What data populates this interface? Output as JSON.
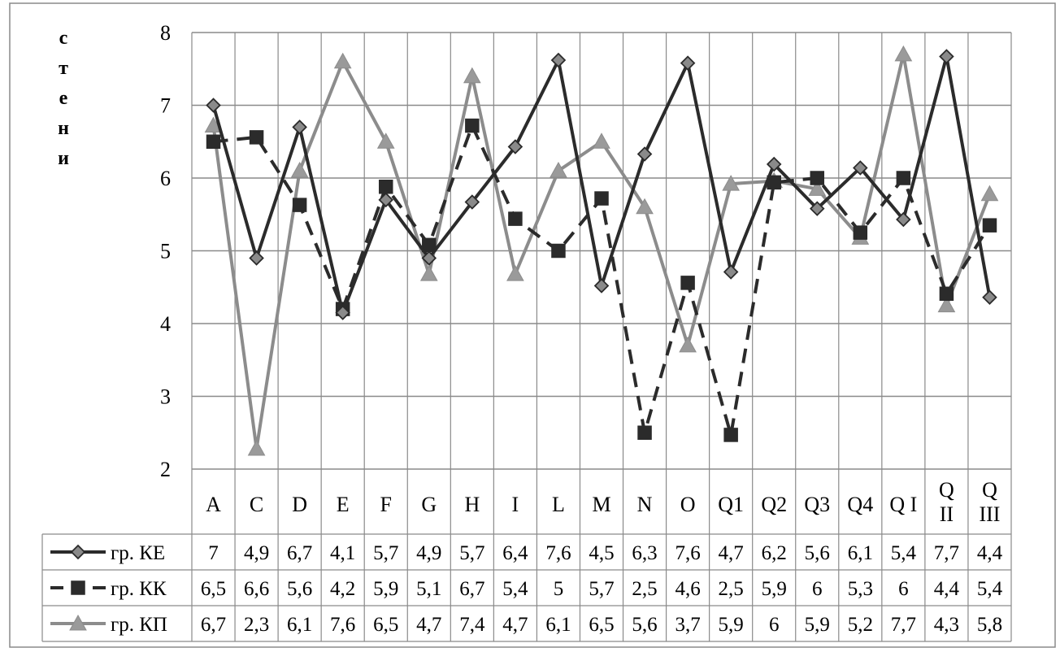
{
  "chart_data": {
    "type": "line",
    "ylabel": "стени",
    "ylim": [
      2,
      8
    ],
    "yticks": [
      "2",
      "3",
      "4",
      "5",
      "6",
      "7",
      "8"
    ],
    "grid": true,
    "legend": "data-table-left",
    "categories": [
      "A",
      "C",
      "D",
      "E",
      "F",
      "G",
      "H",
      "I",
      "L",
      "M",
      "N",
      "O",
      "Q1",
      "Q2",
      "Q3",
      "Q4",
      "Q I",
      "Q II",
      "Q III"
    ],
    "series": [
      {
        "name": "гр. КЕ",
        "color": "#2b2b2b",
        "line": "solid",
        "marker": "diamond",
        "values": [
          7.0,
          4.9,
          6.7,
          4.15,
          5.7,
          4.9,
          5.67,
          6.43,
          7.62,
          4.52,
          6.33,
          7.58,
          4.71,
          6.19,
          5.58,
          6.14,
          5.43,
          7.67,
          4.36
        ],
        "labels": [
          "7",
          "4,9",
          "6,7",
          "4,1",
          "5,7",
          "4,9",
          "5,7",
          "6,4",
          "7,6",
          "4,5",
          "6,3",
          "7,6",
          "4,7",
          "6,2",
          "5,6",
          "6,1",
          "5,4",
          "7,7",
          "4,4"
        ]
      },
      {
        "name": "гр. КК",
        "color": "#2b2b2b",
        "line": "dashed",
        "marker": "square",
        "values": [
          6.5,
          6.56,
          5.63,
          4.2,
          5.88,
          5.08,
          6.72,
          5.44,
          5.0,
          5.72,
          2.5,
          4.56,
          2.47,
          5.94,
          6.0,
          5.25,
          6.0,
          4.41,
          5.35
        ],
        "labels": [
          "6,5",
          "6,6",
          "5,6",
          "4,2",
          "5,9",
          "5,1",
          "6,7",
          "5,4",
          "5",
          "5,7",
          "2,5",
          "4,6",
          "2,5",
          "5,9",
          "6",
          "5,3",
          "6",
          "4,4",
          "5,4"
        ]
      },
      {
        "name": "гр. КП",
        "color": "#8c8c8c",
        "line": "solid",
        "marker": "triangle",
        "values": [
          6.72,
          2.28,
          6.1,
          7.6,
          6.5,
          4.68,
          7.4,
          4.68,
          6.1,
          6.5,
          5.6,
          3.7,
          5.92,
          5.96,
          5.85,
          5.18,
          7.7,
          4.25,
          5.78
        ],
        "labels": [
          "6,7",
          "2,3",
          "6,1",
          "7,6",
          "6,5",
          "4,7",
          "7,4",
          "4,7",
          "6,1",
          "6,5",
          "5,6",
          "3,7",
          "5,9",
          "6",
          "5,9",
          "5,2",
          "7,7",
          "4,3",
          "5,8"
        ]
      }
    ]
  }
}
